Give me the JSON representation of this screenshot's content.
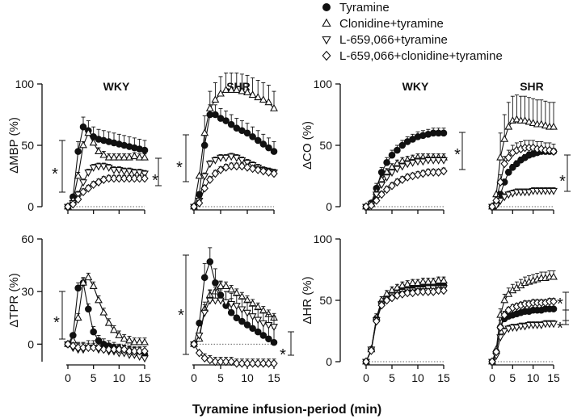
{
  "x_axis_label": "Tyramine infusion-period (min)",
  "legend": [
    {
      "symbol": "filled-circle",
      "label": "Tyramine"
    },
    {
      "symbol": "open-triangle-up",
      "label": "Clonidine+tyramine"
    },
    {
      "symbol": "open-triangle-down",
      "label": "L-659,066+tyramine"
    },
    {
      "symbol": "open-diamond",
      "label": "L-659,066+clonidine+tyramine"
    }
  ],
  "star": "*",
  "chart_data": [
    {
      "type": "scatter",
      "id": "mbp",
      "ylabel": "ΔMBP (%)",
      "groups": [
        "WKY",
        "SHR"
      ],
      "ylim": [
        0,
        100
      ],
      "yticks": [
        0,
        50,
        100
      ],
      "x": [
        0,
        1,
        2,
        3,
        4,
        5,
        6,
        7,
        8,
        9,
        10,
        11,
        12,
        13,
        14,
        15
      ],
      "series": {
        "WKY": {
          "tyr": [
            0,
            8,
            45,
            65,
            62,
            57,
            55,
            54,
            53,
            52,
            51,
            50,
            49,
            48,
            47,
            46
          ],
          "clo": [
            0,
            5,
            25,
            50,
            60,
            52,
            45,
            42,
            40,
            40,
            40,
            40,
            40,
            41,
            40,
            40
          ],
          "l659": [
            0,
            3,
            10,
            20,
            28,
            32,
            33,
            33,
            32,
            30,
            30,
            29,
            29,
            28,
            28,
            27
          ],
          "lclo": [
            0,
            2,
            6,
            12,
            15,
            18,
            20,
            22,
            23,
            23,
            23,
            23,
            23,
            23,
            23,
            23
          ]
        },
        "SHR": {
          "tyr": [
            0,
            10,
            50,
            75,
            75,
            72,
            70,
            67,
            64,
            62,
            60,
            57,
            54,
            51,
            48,
            45
          ],
          "clo": [
            0,
            25,
            60,
            80,
            87,
            92,
            95,
            95,
            95,
            94,
            93,
            91,
            89,
            87,
            85,
            80
          ],
          "l659": [
            0,
            5,
            25,
            35,
            38,
            40,
            40,
            41,
            40,
            38,
            36,
            34,
            32,
            30,
            29,
            28
          ],
          "lclo": [
            0,
            3,
            15,
            22,
            27,
            30,
            32,
            33,
            33,
            33,
            32,
            31,
            30,
            29,
            28,
            27
          ]
        }
      },
      "error_up": {
        "WKY": {
          "tyr": 8,
          "clo": 3
        },
        "SHR": {
          "clo": 14,
          "tyr": 8
        }
      }
    },
    {
      "type": "scatter",
      "id": "co",
      "ylabel": "ΔCO (%)",
      "groups": [
        "WKY",
        "SHR"
      ],
      "ylim": [
        0,
        100
      ],
      "yticks": [
        0,
        50,
        100
      ],
      "x": [
        0,
        1,
        2,
        3,
        4,
        5,
        6,
        7,
        8,
        9,
        10,
        11,
        12,
        13,
        14,
        15
      ],
      "series": {
        "WKY": {
          "tyr": [
            0,
            3,
            15,
            28,
            36,
            42,
            46,
            50,
            53,
            55,
            57,
            58,
            59,
            60,
            60,
            60
          ],
          "clo": [
            0,
            2,
            12,
            22,
            28,
            32,
            35,
            37,
            38,
            39,
            40,
            40,
            40,
            40,
            40,
            40
          ],
          "l659": [
            0,
            2,
            10,
            18,
            24,
            28,
            31,
            33,
            35,
            36,
            37,
            37,
            38,
            38,
            38,
            38
          ],
          "lclo": [
            0,
            1,
            5,
            10,
            14,
            17,
            20,
            22,
            24,
            25,
            26,
            27,
            28,
            28,
            28,
            29
          ]
        },
        "SHR": {
          "tyr": [
            0,
            2,
            10,
            20,
            28,
            32,
            35,
            38,
            40,
            42,
            43,
            44,
            45,
            45,
            45,
            45
          ],
          "clo": [
            0,
            10,
            40,
            55,
            65,
            70,
            71,
            70,
            70,
            69,
            68,
            67,
            67,
            66,
            65,
            65
          ],
          "l659": [
            0,
            1,
            5,
            8,
            10,
            11,
            12,
            12,
            12,
            12,
            13,
            13,
            13,
            13,
            13,
            13
          ],
          "lclo": [
            0,
            5,
            20,
            35,
            40,
            44,
            46,
            47,
            48,
            48,
            48,
            47,
            47,
            46,
            46,
            45
          ]
        }
      },
      "error_up": {
        "WKY": {
          "tyr": 4,
          "clo": 3
        },
        "SHR": {
          "clo": 20,
          "lclo": 6
        }
      }
    },
    {
      "type": "scatter",
      "id": "tpr",
      "ylabel": "ΔTPR (%)",
      "groups": [
        "WKY",
        "SHR"
      ],
      "ylim": [
        -10,
        60
      ],
      "yticks": [
        0,
        30,
        60
      ],
      "x": [
        0,
        1,
        2,
        3,
        4,
        5,
        6,
        7,
        8,
        9,
        10,
        11,
        12,
        13,
        14,
        15
      ],
      "series": {
        "WKY": {
          "tyr": [
            0,
            5,
            32,
            35,
            20,
            7,
            2,
            0,
            -1,
            -2,
            -3,
            -4,
            -4,
            -5,
            -5,
            -6
          ],
          "clo": [
            0,
            2,
            15,
            35,
            38,
            33,
            25,
            18,
            12,
            8,
            5,
            3,
            2,
            1,
            1,
            1
          ],
          "l659": [
            0,
            -2,
            -3,
            -3,
            -2,
            -2,
            -3,
            -3,
            -4,
            -4,
            -5,
            -5,
            -6,
            -6,
            -7,
            -8
          ],
          "lclo": [
            0,
            -1,
            -2,
            -2,
            -2,
            -2,
            -2,
            -3,
            -3,
            -3,
            -3,
            -3,
            -4,
            -4,
            -4,
            -4
          ]
        },
        "SHR": {
          "tyr": [
            0,
            12,
            38,
            47,
            35,
            28,
            22,
            18,
            15,
            13,
            11,
            9,
            7,
            5,
            3,
            1
          ],
          "clo": [
            0,
            3,
            20,
            28,
            30,
            33,
            33,
            31,
            29,
            27,
            25,
            23,
            21,
            19,
            17,
            15
          ],
          "l659": [
            0,
            5,
            18,
            25,
            25,
            25,
            24,
            23,
            22,
            20,
            18,
            16,
            14,
            12,
            11,
            10
          ],
          "lclo": [
            0,
            -5,
            -8,
            -9,
            -10,
            -10,
            -10,
            -10,
            -11,
            -11,
            -11,
            -11,
            -11,
            -11,
            -11,
            -11
          ]
        }
      },
      "error_up": {
        "WKY": {
          "tyr": 3,
          "l659": 4
        },
        "SHR": {
          "tyr": 8,
          "l659": 6
        }
      }
    },
    {
      "type": "scatter",
      "id": "hr",
      "ylabel": "ΔHR (%)",
      "groups": [
        "WKY",
        "SHR"
      ],
      "ylim": [
        0,
        100
      ],
      "yticks": [
        0,
        50,
        100
      ],
      "x": [
        0,
        1,
        2,
        3,
        4,
        5,
        6,
        7,
        8,
        9,
        10,
        11,
        12,
        13,
        14,
        15
      ],
      "series": {
        "WKY": {
          "tyr": [
            0,
            10,
            35,
            48,
            52,
            55,
            57,
            58,
            59,
            60,
            61,
            61,
            62,
            62,
            62,
            62
          ],
          "clo": [
            0,
            10,
            36,
            50,
            55,
            58,
            60,
            62,
            63,
            64,
            64,
            65,
            65,
            65,
            66,
            66
          ],
          "l659": [
            0,
            10,
            34,
            47,
            51,
            54,
            56,
            57,
            58,
            58,
            59,
            59,
            60,
            60,
            60,
            60
          ],
          "lclo": [
            0,
            9,
            33,
            46,
            50,
            52,
            54,
            55,
            56,
            56,
            57,
            57,
            57,
            57,
            58,
            58
          ]
        },
        "SHR": {
          "tyr": [
            0,
            8,
            28,
            35,
            37,
            38,
            39,
            40,
            41,
            41,
            42,
            42,
            42,
            43,
            43,
            43
          ],
          "clo": [
            0,
            10,
            38,
            50,
            55,
            58,
            60,
            62,
            64,
            65,
            66,
            67,
            68,
            68,
            69,
            69
          ],
          "l659": [
            0,
            5,
            20,
            25,
            27,
            28,
            28,
            29,
            29,
            30,
            30,
            30,
            30,
            31,
            31,
            31
          ],
          "lclo": [
            0,
            8,
            28,
            38,
            42,
            44,
            45,
            46,
            47,
            47,
            48,
            48,
            48,
            48,
            49,
            49
          ]
        }
      },
      "error_up": {
        "WKY": {
          "clo": 3
        },
        "SHR": {
          "clo": 5,
          "tyr": 6
        }
      }
    }
  ]
}
